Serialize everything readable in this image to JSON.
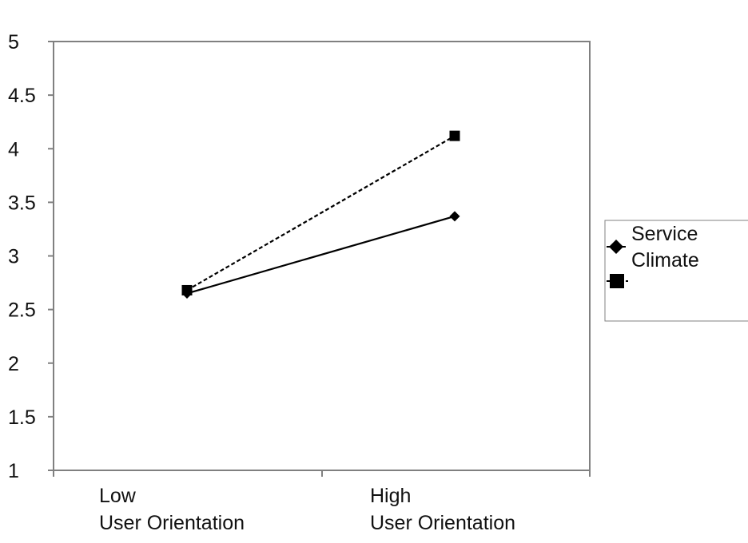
{
  "chart_data": {
    "type": "line",
    "title": "",
    "xlabel": "",
    "ylabel": "",
    "ylim": [
      1,
      5
    ],
    "yticks": [
      "1",
      "1.5",
      "2",
      "2.5",
      "3",
      "3.5",
      "4",
      "4.5",
      "5"
    ],
    "categories": [
      [
        "Low",
        "User Orientation"
      ],
      [
        "High",
        "User Orientation"
      ]
    ],
    "series": [
      {
        "marker": "diamond",
        "line": "solid",
        "values": [
          2.65,
          3.37
        ]
      },
      {
        "marker": "square",
        "line": "dashed",
        "values": [
          2.68,
          4.12
        ]
      }
    ],
    "legend": {
      "position": "right",
      "title_lines": [
        "Service",
        "Climate"
      ]
    },
    "grid": false
  },
  "colors": {
    "axis": "#808080",
    "series": "#000000",
    "background": "#ffffff"
  }
}
